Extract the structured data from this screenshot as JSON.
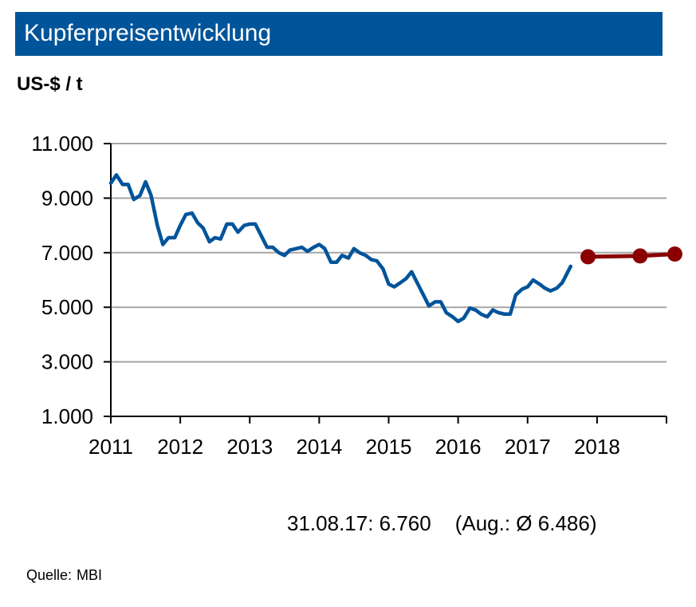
{
  "title": "Kupferpreisentwicklung",
  "unit_label": "US-$ / t",
  "footnote": {
    "date_value": "31.08.17: 6.760",
    "average": "(Aug.: Ø 6.486)"
  },
  "source": {
    "label": "Quelle:",
    "value": "MBI"
  },
  "chart_data": {
    "type": "line",
    "title": "Kupferpreisentwicklung",
    "ylabel": "US-$ / t",
    "xlabel": "",
    "xlim": [
      2011,
      2019
    ],
    "ylim": [
      1000,
      11000
    ],
    "x_ticks": [
      2011,
      2012,
      2013,
      2014,
      2015,
      2016,
      2017,
      2018
    ],
    "y_ticks": [
      {
        "value": 1000,
        "label": "1.000"
      },
      {
        "value": 3000,
        "label": "3.000"
      },
      {
        "value": 5000,
        "label": "5.000"
      },
      {
        "value": 7000,
        "label": "7.000"
      },
      {
        "value": 9000,
        "label": "9.000"
      },
      {
        "value": 11000,
        "label": "11.000"
      }
    ],
    "grid": "horizontal",
    "series": [
      {
        "color": "#00549a",
        "points": [
          [
            2011.0,
            9550
          ],
          [
            2011.08,
            9850
          ],
          [
            2011.17,
            9500
          ],
          [
            2011.25,
            9500
          ],
          [
            2011.33,
            8950
          ],
          [
            2011.42,
            9100
          ],
          [
            2011.5,
            9600
          ],
          [
            2011.58,
            9100
          ],
          [
            2011.67,
            8000
          ],
          [
            2011.75,
            7300
          ],
          [
            2011.83,
            7550
          ],
          [
            2011.92,
            7550
          ],
          [
            2012.0,
            8000
          ],
          [
            2012.08,
            8400
          ],
          [
            2012.17,
            8450
          ],
          [
            2012.25,
            8100
          ],
          [
            2012.33,
            7900
          ],
          [
            2012.42,
            7400
          ],
          [
            2012.5,
            7550
          ],
          [
            2012.58,
            7500
          ],
          [
            2012.67,
            8050
          ],
          [
            2012.75,
            8050
          ],
          [
            2012.83,
            7750
          ],
          [
            2012.92,
            8000
          ],
          [
            2013.0,
            8050
          ],
          [
            2013.08,
            8050
          ],
          [
            2013.17,
            7600
          ],
          [
            2013.25,
            7200
          ],
          [
            2013.33,
            7200
          ],
          [
            2013.42,
            7000
          ],
          [
            2013.5,
            6900
          ],
          [
            2013.58,
            7100
          ],
          [
            2013.67,
            7150
          ],
          [
            2013.75,
            7200
          ],
          [
            2013.83,
            7050
          ],
          [
            2013.92,
            7200
          ],
          [
            2014.0,
            7300
          ],
          [
            2014.08,
            7150
          ],
          [
            2014.17,
            6650
          ],
          [
            2014.25,
            6650
          ],
          [
            2014.33,
            6900
          ],
          [
            2014.42,
            6800
          ],
          [
            2014.5,
            7150
          ],
          [
            2014.58,
            7000
          ],
          [
            2014.67,
            6900
          ],
          [
            2014.75,
            6750
          ],
          [
            2014.83,
            6700
          ],
          [
            2014.92,
            6400
          ],
          [
            2015.0,
            5850
          ],
          [
            2015.08,
            5750
          ],
          [
            2015.17,
            5900
          ],
          [
            2015.25,
            6050
          ],
          [
            2015.33,
            6300
          ],
          [
            2015.42,
            5850
          ],
          [
            2015.5,
            5450
          ],
          [
            2015.58,
            5050
          ],
          [
            2015.67,
            5200
          ],
          [
            2015.75,
            5200
          ],
          [
            2015.83,
            4800
          ],
          [
            2015.92,
            4650
          ],
          [
            2016.0,
            4480
          ],
          [
            2016.08,
            4600
          ],
          [
            2016.17,
            4970
          ],
          [
            2016.25,
            4900
          ],
          [
            2016.33,
            4750
          ],
          [
            2016.42,
            4650
          ],
          [
            2016.5,
            4900
          ],
          [
            2016.58,
            4800
          ],
          [
            2016.67,
            4750
          ],
          [
            2016.75,
            4750
          ],
          [
            2016.83,
            5450
          ],
          [
            2016.92,
            5660
          ],
          [
            2017.0,
            5750
          ],
          [
            2017.08,
            6000
          ],
          [
            2017.17,
            5850
          ],
          [
            2017.25,
            5700
          ],
          [
            2017.33,
            5600
          ],
          [
            2017.42,
            5700
          ],
          [
            2017.5,
            5900
          ],
          [
            2017.58,
            6300
          ],
          [
            2017.62,
            6500
          ]
        ]
      },
      {
        "color": "#8b0000",
        "markers": true,
        "points": [
          [
            2017.87,
            6850
          ],
          [
            2018.62,
            6880
          ],
          [
            2019.12,
            6950
          ]
        ]
      }
    ]
  }
}
